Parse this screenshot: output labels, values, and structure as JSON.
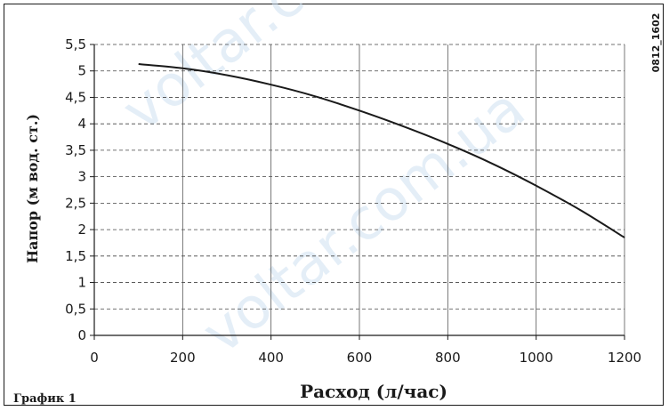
{
  "chart_data": {
    "type": "line",
    "title": "",
    "xlabel": "Расход (л/час)",
    "ylabel": "Напор (м вод. ст.)",
    "xlim": [
      0,
      1200
    ],
    "ylim": [
      0,
      5.5
    ],
    "x_ticks": [
      "0",
      "200",
      "400",
      "600",
      "800",
      "1000",
      "1200"
    ],
    "y_ticks": [
      "0",
      "0,5",
      "1",
      "1,5",
      "2",
      "2,5",
      "3",
      "3,5",
      "4",
      "4,5",
      "5",
      "5,5"
    ],
    "grid": {
      "vertical": "solid",
      "horizontal": "dashed"
    },
    "series": [
      {
        "x": [
          100,
          200,
          300,
          400,
          500,
          600,
          700,
          800,
          900,
          1000,
          1100,
          1200
        ],
        "y": [
          5.13,
          5.05,
          4.92,
          4.74,
          4.52,
          4.25,
          3.95,
          3.62,
          3.25,
          2.83,
          2.37,
          1.85
        ],
        "color": "#1a1a1a"
      }
    ]
  },
  "caption": "График 1",
  "image_code": "0812_1602",
  "watermark": "voltar.com.ua"
}
